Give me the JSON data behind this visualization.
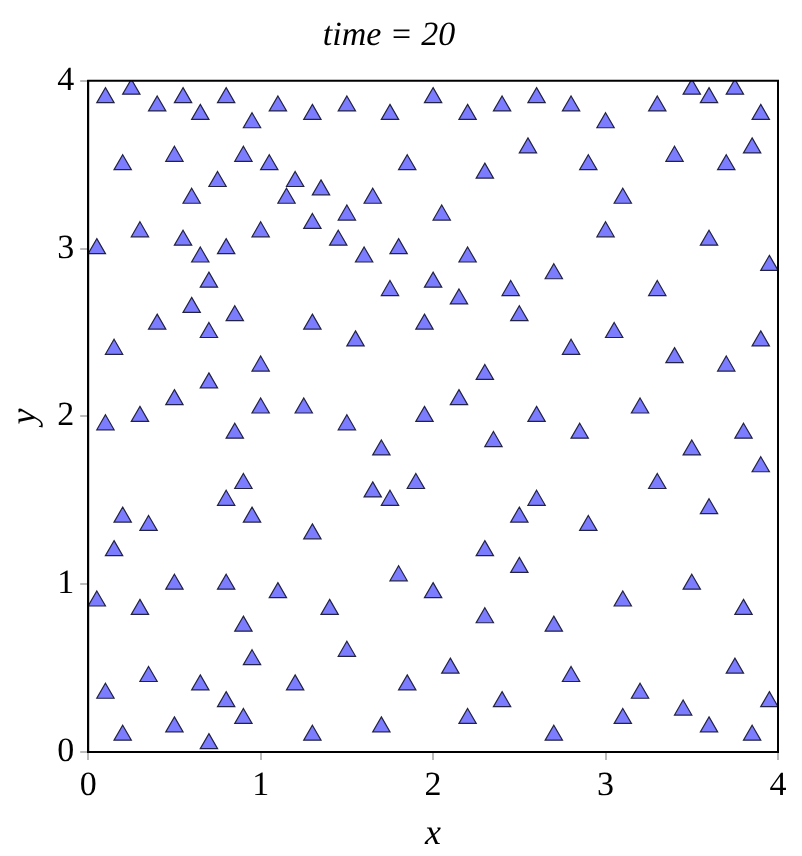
{
  "chart_data": {
    "type": "scatter",
    "title": "time = 20",
    "xlabel": "x",
    "ylabel": "y",
    "xlim": [
      0,
      4
    ],
    "ylim": [
      0,
      4
    ],
    "xticks": [
      0,
      1,
      2,
      3,
      4
    ],
    "yticks": [
      0,
      1,
      2,
      3,
      4
    ],
    "grid": false,
    "legend": false,
    "marker": "triangle",
    "series": [
      {
        "color": "#4d4dff",
        "x": [
          0.1,
          0.25,
          0.4,
          0.55,
          0.65,
          0.8,
          0.95,
          1.1,
          1.3,
          1.5,
          1.75,
          2.0,
          2.2,
          2.4,
          2.6,
          2.8,
          3.0,
          3.3,
          3.5,
          3.6,
          3.75,
          3.9,
          0.2,
          0.5,
          0.6,
          0.75,
          0.9,
          1.05,
          1.2,
          1.35,
          1.5,
          1.65,
          1.85,
          2.05,
          2.3,
          2.55,
          2.9,
          3.1,
          3.4,
          3.7,
          3.85,
          0.05,
          0.3,
          0.55,
          0.65,
          0.7,
          0.8,
          1.0,
          1.15,
          1.3,
          1.45,
          1.6,
          1.8,
          2.0,
          2.2,
          2.45,
          2.7,
          3.0,
          3.3,
          3.6,
          3.95,
          0.15,
          0.4,
          0.6,
          0.7,
          0.85,
          1.0,
          1.3,
          1.55,
          1.75,
          1.95,
          2.15,
          2.3,
          2.5,
          2.8,
          3.05,
          3.4,
          3.7,
          3.9,
          0.1,
          0.3,
          0.5,
          0.7,
          0.85,
          1.0,
          1.25,
          1.5,
          1.7,
          1.95,
          2.15,
          2.35,
          2.6,
          2.85,
          3.2,
          3.5,
          3.8,
          0.2,
          0.15,
          0.35,
          0.8,
          0.9,
          0.95,
          1.3,
          1.65,
          1.75,
          1.9,
          2.3,
          2.5,
          2.6,
          2.9,
          3.3,
          3.6,
          3.9,
          0.05,
          0.3,
          0.5,
          0.8,
          0.9,
          1.1,
          1.4,
          1.8,
          2.0,
          2.3,
          2.5,
          2.7,
          3.1,
          3.5,
          3.8,
          0.1,
          0.35,
          0.65,
          0.8,
          0.95,
          1.2,
          1.5,
          1.85,
          2.1,
          2.4,
          2.8,
          3.2,
          3.45,
          3.75,
          3.95,
          0.2,
          0.5,
          0.7,
          0.9,
          1.3,
          1.7,
          2.2,
          2.7,
          3.1,
          3.6,
          3.85
        ],
        "values": [
          3.9,
          3.95,
          3.85,
          3.9,
          3.8,
          3.9,
          3.75,
          3.85,
          3.8,
          3.85,
          3.8,
          3.9,
          3.8,
          3.85,
          3.9,
          3.85,
          3.75,
          3.85,
          3.95,
          3.9,
          3.95,
          3.8,
          3.5,
          3.55,
          3.3,
          3.4,
          3.55,
          3.5,
          3.4,
          3.35,
          3.2,
          3.3,
          3.5,
          3.2,
          3.45,
          3.6,
          3.5,
          3.3,
          3.55,
          3.5,
          3.6,
          3.0,
          3.1,
          3.05,
          2.95,
          2.8,
          3.0,
          3.1,
          3.3,
          3.15,
          3.05,
          2.95,
          3.0,
          2.8,
          2.95,
          2.75,
          2.85,
          3.1,
          2.75,
          3.05,
          2.9,
          2.4,
          2.55,
          2.65,
          2.5,
          2.6,
          2.3,
          2.55,
          2.45,
          2.75,
          2.55,
          2.7,
          2.25,
          2.6,
          2.4,
          2.5,
          2.35,
          2.3,
          2.45,
          1.95,
          2.0,
          2.1,
          2.2,
          1.9,
          2.05,
          2.05,
          1.95,
          1.8,
          2.0,
          2.1,
          1.85,
          2.0,
          1.9,
          2.05,
          1.8,
          1.9,
          1.4,
          1.2,
          1.35,
          1.5,
          1.6,
          1.4,
          1.3,
          1.55,
          1.5,
          1.6,
          1.2,
          1.4,
          1.5,
          1.35,
          1.6,
          1.45,
          1.7,
          0.9,
          0.85,
          1.0,
          1.0,
          0.75,
          0.95,
          0.85,
          1.05,
          0.95,
          0.8,
          1.1,
          0.75,
          0.9,
          1.0,
          0.85,
          0.35,
          0.45,
          0.4,
          0.3,
          0.55,
          0.4,
          0.6,
          0.4,
          0.5,
          0.3,
          0.45,
          0.35,
          0.25,
          0.5,
          0.3,
          0.1,
          0.15,
          0.05,
          0.2,
          0.1,
          0.15,
          0.2,
          0.1,
          0.2,
          0.15,
          0.1
        ]
      }
    ]
  }
}
